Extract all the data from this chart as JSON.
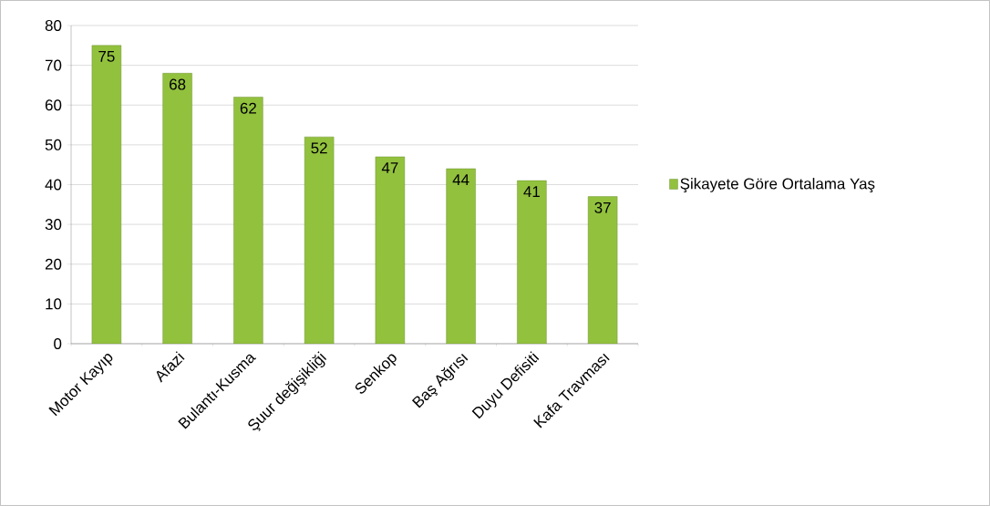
{
  "chart_data": {
    "type": "bar",
    "categories": [
      "Motor Kayıp",
      "Afazi",
      "Bulantı-Kusma",
      "Şuur değişikliği",
      "Senkop",
      "Baş Ağrısı",
      "Duyu Defisiti",
      "Kafa Travması"
    ],
    "series": [
      {
        "name": "Şikayete Göre Ortalama Yaş",
        "color": "#92c13e",
        "values": [
          75,
          68,
          62,
          52,
          47,
          44,
          41,
          37
        ]
      }
    ],
    "ylim": [
      0,
      80
    ],
    "yticks": [
      0,
      10,
      20,
      30,
      40,
      50,
      60,
      70,
      80
    ],
    "grid": "y",
    "legend": "right",
    "data_labels": true
  }
}
